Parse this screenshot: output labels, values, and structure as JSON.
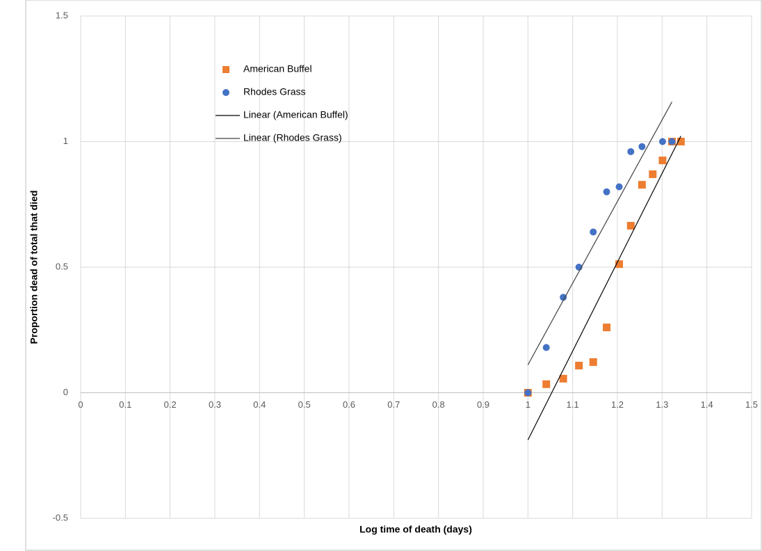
{
  "chart_data": {
    "type": "scatter",
    "xlabel": "Log time of death (days)",
    "ylabel": "Proportion dead of total that died",
    "xlim": [
      0,
      1.5
    ],
    "xticks": [
      0,
      0.1,
      0.2,
      0.3,
      0.4,
      0.5,
      0.6,
      0.7,
      0.8,
      0.9,
      1,
      1.1,
      1.2,
      1.3,
      1.4,
      1.5
    ],
    "ylim": [
      -0.5,
      1.5
    ],
    "yticks": [
      -0.5,
      0,
      0.5,
      1,
      1.5
    ],
    "grid": true,
    "legend": "top-left",
    "series": [
      {
        "name": "American Buffel",
        "type": "scatter",
        "marker": "square",
        "color": "#ed7d31",
        "x": [
          1.0,
          1.041,
          1.079,
          1.114,
          1.146,
          1.176,
          1.204,
          1.23,
          1.255,
          1.279,
          1.301,
          1.322,
          1.342
        ],
        "values": [
          0,
          0.034,
          0.056,
          0.108,
          0.122,
          0.26,
          0.512,
          0.665,
          0.828,
          0.87,
          0.925,
          1.0,
          1.0
        ]
      },
      {
        "name": "Rhodes Grass",
        "type": "scatter",
        "marker": "circle",
        "color": "#4472c4",
        "x": [
          1.0,
          1.041,
          1.079,
          1.114,
          1.146,
          1.176,
          1.204,
          1.23,
          1.255,
          1.301,
          1.322
        ],
        "values": [
          0,
          0.18,
          0.38,
          0.5,
          0.64,
          0.8,
          0.82,
          0.96,
          0.98,
          1.0,
          1.0
        ]
      },
      {
        "name": "Linear (American Buffel)",
        "type": "line",
        "color": "#000000",
        "x": [
          1.0,
          1.342
        ],
        "values": [
          -0.188,
          1.022
        ]
      },
      {
        "name": "Linear (Rhodes Grass)",
        "type": "line",
        "color": "#404040",
        "x": [
          1.0,
          1.322
        ],
        "values": [
          0.111,
          1.158
        ]
      }
    ]
  }
}
